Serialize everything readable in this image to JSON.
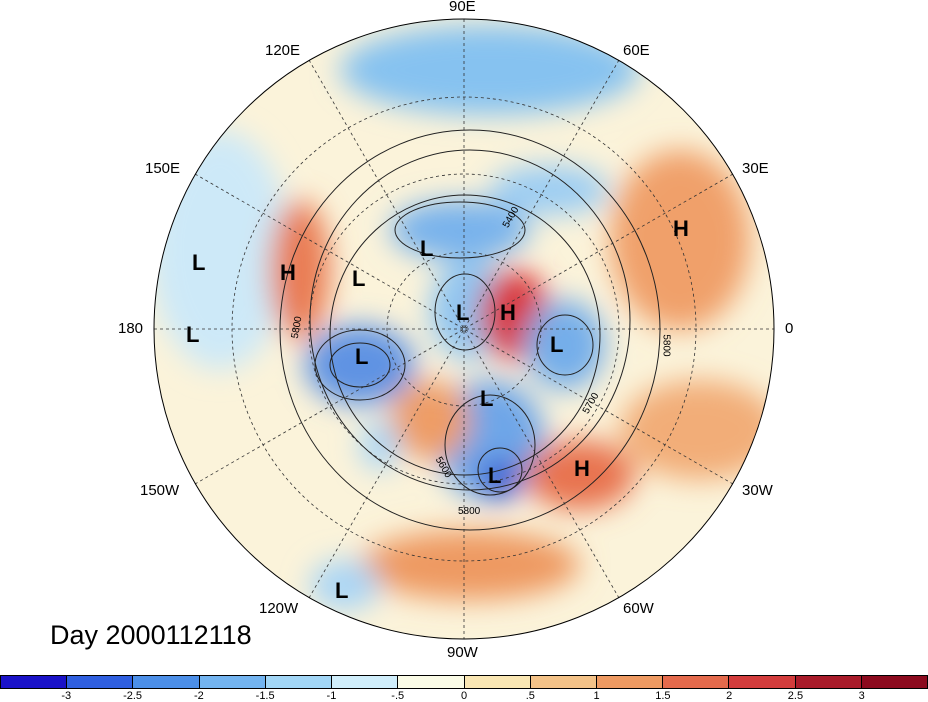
{
  "lon_labels": [
    "90E",
    "60E",
    "30E",
    "0",
    "30W",
    "60W",
    "90W",
    "120W",
    "150W",
    "180",
    "150E",
    "120E"
  ],
  "pressure_centers": [
    "L",
    "L",
    "H",
    "L",
    "L",
    "L",
    "L",
    "H",
    "L",
    "L",
    "L",
    "H",
    "H",
    "L"
  ],
  "contour_labels": [
    "5400",
    "5800",
    "5800",
    "5700",
    "5600",
    "5800"
  ],
  "date_label": "Day 2000112118",
  "colorbar": {
    "ticks": [
      "-3",
      "-2.5",
      "-2",
      "-1.5",
      "-1",
      "-.5",
      "0",
      ".5",
      "1",
      "1.5",
      "2",
      "2.5",
      "3"
    ],
    "colors": [
      "#1a12c8",
      "#2f5fe0",
      "#4c8fe8",
      "#73b4f0",
      "#a2d6f6",
      "#d0eefb",
      "#fafbe6",
      "#f9e6b3",
      "#f3c288",
      "#ee9a62",
      "#e46a4c",
      "#d33c3c",
      "#a91b2a",
      "#8c0a1e"
    ]
  }
}
